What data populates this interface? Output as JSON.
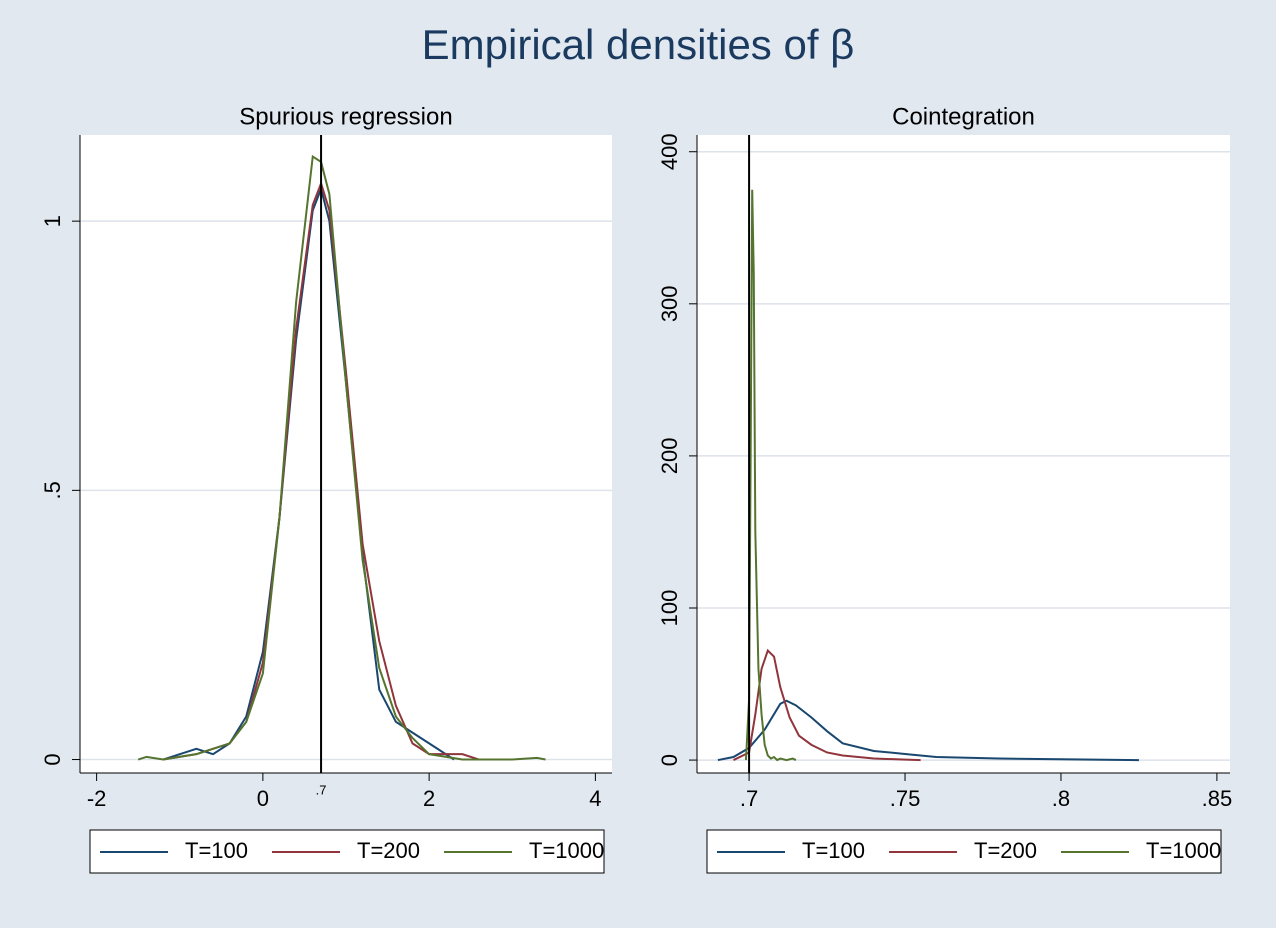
{
  "title": "Empirical densities of β",
  "chart_data": [
    {
      "type": "line",
      "title": "Spurious regression",
      "xlim": [
        -2.2,
        4.2
      ],
      "ylim": [
        -0.025,
        1.16
      ],
      "xticks": [
        -2,
        0,
        2,
        4
      ],
      "yticks": [
        0,
        {
          "value": 0.5,
          "label": ".5"
        },
        1
      ],
      "grid": true,
      "vline": {
        "value": 0.7,
        "label": ".7"
      },
      "series": [
        {
          "name": "T=100",
          "color": "#1a476f",
          "x": [
            -1.2,
            -1,
            -0.8,
            -0.6,
            -0.4,
            -0.2,
            0,
            0.2,
            0.4,
            0.6,
            0.7,
            0.8,
            1.0,
            1.2,
            1.4,
            1.6,
            1.8,
            2.0,
            2.1,
            2.3
          ],
          "values": [
            0,
            0.01,
            0.02,
            0.01,
            0.03,
            0.08,
            0.2,
            0.45,
            0.78,
            1.02,
            1.06,
            1.0,
            0.7,
            0.38,
            0.13,
            0.07,
            0.05,
            0.03,
            0.02,
            0
          ]
        },
        {
          "name": "T=200",
          "color": "#90353b",
          "x": [
            -1.2,
            -0.8,
            -0.4,
            -0.2,
            0,
            0.2,
            0.4,
            0.6,
            0.7,
            0.8,
            1.0,
            1.2,
            1.4,
            1.6,
            1.8,
            2.0,
            2.2,
            2.4,
            2.6
          ],
          "values": [
            0,
            0.01,
            0.03,
            0.07,
            0.18,
            0.45,
            0.8,
            1.03,
            1.07,
            1.02,
            0.72,
            0.4,
            0.22,
            0.1,
            0.03,
            0.01,
            0.01,
            0.01,
            0
          ]
        },
        {
          "name": "T=1000",
          "color": "#55752f",
          "x": [
            -1.5,
            -1.4,
            -1.2,
            -0.8,
            -0.4,
            -0.2,
            0,
            0.2,
            0.4,
            0.6,
            0.7,
            0.8,
            1.0,
            1.2,
            1.4,
            1.6,
            1.8,
            2.0,
            2.4,
            3.0,
            3.3,
            3.4
          ],
          "values": [
            0,
            0.005,
            0,
            0.01,
            0.03,
            0.07,
            0.16,
            0.45,
            0.85,
            1.12,
            1.11,
            1.05,
            0.7,
            0.37,
            0.17,
            0.08,
            0.04,
            0.01,
            0,
            0,
            0.003,
            0
          ]
        }
      ]
    },
    {
      "type": "line",
      "title": "Cointegration",
      "xlim": [
        0.6833,
        0.8542
      ],
      "ylim": [
        -8.5,
        411
      ],
      "xticks": [
        {
          "value": 0.7,
          "label": ".7"
        },
        {
          "value": 0.75,
          "label": ".75"
        },
        {
          "value": 0.8,
          "label": ".8"
        },
        {
          "value": 0.85,
          "label": ".85"
        }
      ],
      "yticks": [
        0,
        100,
        200,
        300,
        400
      ],
      "grid": true,
      "vline": {
        "value": 0.7
      },
      "series": [
        {
          "name": "T=100",
          "color": "#1a476f",
          "x": [
            0.69,
            0.695,
            0.7,
            0.705,
            0.71,
            0.712,
            0.715,
            0.72,
            0.725,
            0.73,
            0.74,
            0.75,
            0.76,
            0.78,
            0.8,
            0.825
          ],
          "values": [
            0,
            2,
            8,
            20,
            37,
            39,
            36,
            28,
            19,
            11,
            6,
            4,
            2,
            1,
            0.5,
            0
          ]
        },
        {
          "name": "T=200",
          "color": "#90353b",
          "x": [
            0.695,
            0.7,
            0.702,
            0.704,
            0.706,
            0.708,
            0.71,
            0.713,
            0.716,
            0.72,
            0.725,
            0.73,
            0.74,
            0.755
          ],
          "values": [
            0,
            5,
            30,
            60,
            72,
            68,
            48,
            28,
            16,
            10,
            5,
            3,
            1,
            0
          ]
        },
        {
          "name": "T=1000",
          "color": "#55752f",
          "x": [
            0.699,
            0.7,
            0.7005,
            0.701,
            0.7015,
            0.702,
            0.703,
            0.704,
            0.705,
            0.706,
            0.707,
            0.708,
            0.709,
            0.71,
            0.712,
            0.714,
            0.715
          ],
          "values": [
            0,
            40,
            200,
            375,
            320,
            150,
            60,
            30,
            10,
            3,
            1,
            2,
            0,
            1,
            0,
            1,
            0
          ]
        }
      ]
    }
  ]
}
